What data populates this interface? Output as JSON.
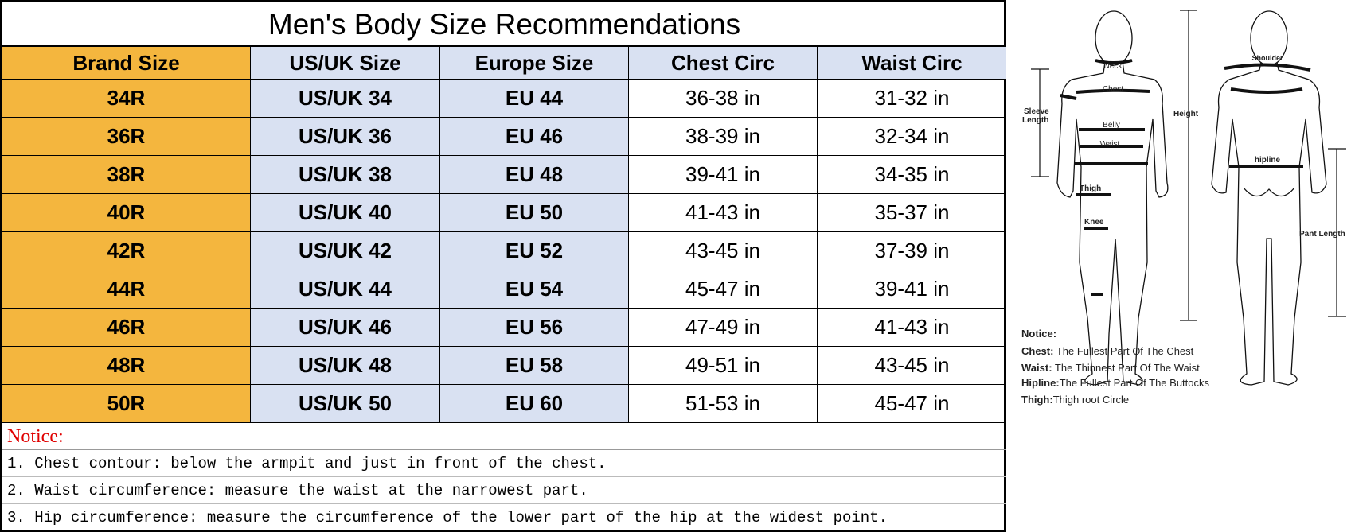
{
  "title": "Men's Body Size Recommendations",
  "headers": [
    "Brand Size",
    "US/UK Size",
    "Europe Size",
    "Chest Circ",
    "Waist Circ"
  ],
  "rows": [
    [
      "34R",
      "US/UK 34",
      "EU 44",
      "36-38 in",
      "31-32 in"
    ],
    [
      "36R",
      "US/UK 36",
      "EU 46",
      "38-39 in",
      "32-34 in"
    ],
    [
      "38R",
      "US/UK 38",
      "EU 48",
      "39-41 in",
      "34-35 in"
    ],
    [
      "40R",
      "US/UK 40",
      "EU 50",
      "41-43 in",
      "35-37 in"
    ],
    [
      "42R",
      "US/UK 42",
      "EU 52",
      "43-45 in",
      "37-39 in"
    ],
    [
      "44R",
      "US/UK 44",
      "EU 54",
      "45-47 in",
      "39-41 in"
    ],
    [
      "46R",
      "US/UK 46",
      "EU 56",
      "47-49 in",
      "41-43 in"
    ],
    [
      "48R",
      "US/UK 48",
      "EU 58",
      "49-51 in",
      "43-45 in"
    ],
    [
      "50R",
      "US/UK 50",
      "EU 60",
      "51-53 in",
      "45-47 in"
    ]
  ],
  "notice": {
    "label": "Notice:",
    "lines": [
      "1. Chest contour: below the armpit and just in front of the chest.",
      "2. Waist circumference: measure the waist at the narrowest part.",
      "3. Hip circumference: measure the circumference of the lower part of the hip at the widest point."
    ]
  },
  "figure": {
    "labels": {
      "neck": "Neck",
      "chest": "Chest",
      "belly": "Belly",
      "waist": "Waist",
      "thigh": "Thigh",
      "knee": "Knee",
      "sleeve": "Sleeve",
      "length": "Length",
      "height": "Height",
      "shoulder": "Shoulder",
      "hipline": "hipline",
      "pant_length": "Pant Length"
    },
    "notice_title": "Notice:",
    "notes": [
      {
        "k": "Chest:",
        "v": " The Fullest Part Of The Chest"
      },
      {
        "k": "Waist:",
        "v": " The Thinnest Part Of The Waist"
      },
      {
        "k": "Hipline:",
        "v": "The Fullest Part Of The Buttocks"
      },
      {
        "k": "Thigh:",
        "v": "Thigh root Circle"
      }
    ]
  },
  "colors": {
    "brand_col": "#f4b63e",
    "size_cols": "#d9e1f2",
    "notice": "#e00000"
  }
}
